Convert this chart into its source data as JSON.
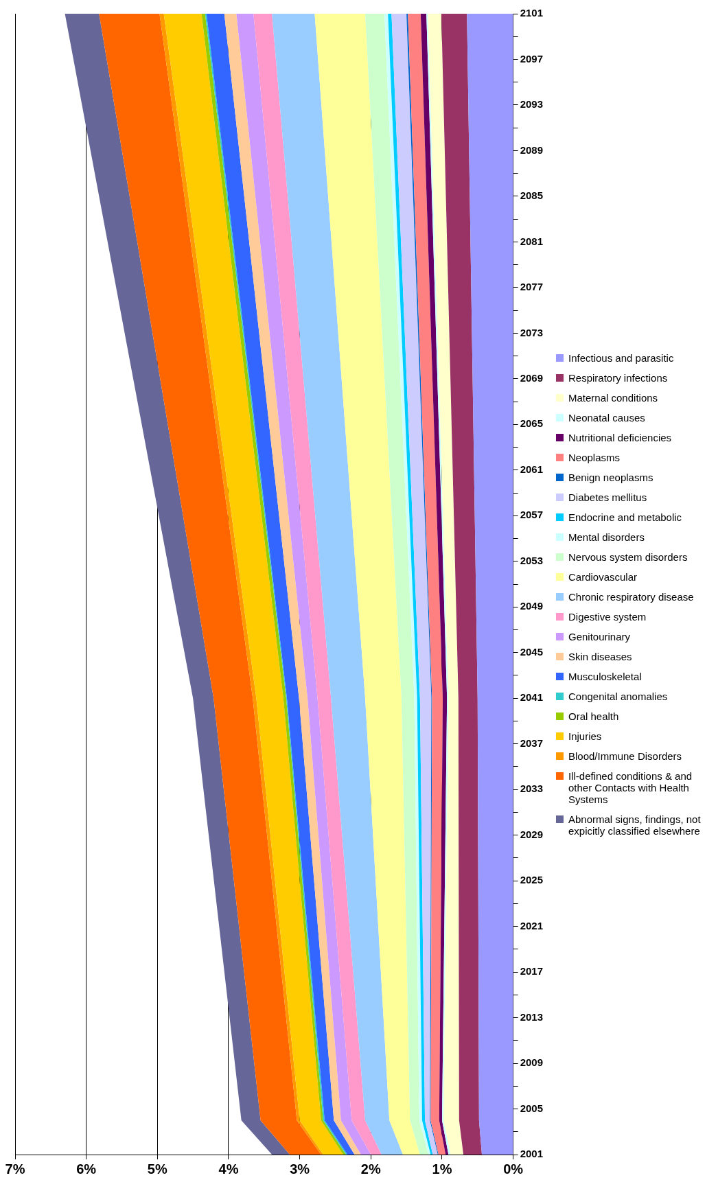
{
  "chart_data": {
    "type": "area",
    "stacked": true,
    "orientation": "horizontal",
    "x": [
      2001,
      2004,
      2041,
      2101
    ],
    "series": [
      {
        "name": "Infectious and parasitic",
        "color": "#9999ff",
        "values": [
          0.44,
          0.48,
          0.5,
          0.65
        ]
      },
      {
        "name": "Respiratory infections",
        "color": "#993366",
        "values": [
          0.26,
          0.28,
          0.27,
          0.36
        ]
      },
      {
        "name": "Maternal conditions",
        "color": "#ffffcc",
        "values": [
          0.18,
          0.22,
          0.14,
          0.19
        ]
      },
      {
        "name": "Neonatal causes",
        "color": "#ccffff",
        "values": [
          0.03,
          0.02,
          0.02,
          0.02
        ]
      },
      {
        "name": "Nutritional deficiencies",
        "color": "#660066",
        "values": [
          0.04,
          0.04,
          0.06,
          0.08
        ]
      },
      {
        "name": "Neoplasms",
        "color": "#ff8080",
        "values": [
          0.1,
          0.12,
          0.15,
          0.18
        ]
      },
      {
        "name": "Benign neoplasms",
        "color": "#0066cc",
        "values": [
          0.01,
          0.01,
          0.01,
          0.02
        ]
      },
      {
        "name": "Diabetes mellitus",
        "color": "#ccccff",
        "values": [
          0.07,
          0.07,
          0.16,
          0.21
        ]
      },
      {
        "name": "Endocrine and metabolic",
        "color": "#00ccff",
        "values": [
          0.03,
          0.04,
          0.04,
          0.05
        ]
      },
      {
        "name": "Mental disorders",
        "color": "#ccffff",
        "values": [
          0.03,
          0.04,
          0.04,
          0.05
        ]
      },
      {
        "name": "Nervous system disorders",
        "color": "#ccffcc",
        "values": [
          0.12,
          0.13,
          0.18,
          0.27
        ]
      },
      {
        "name": "Cardiovascular",
        "color": "#ffff99",
        "values": [
          0.24,
          0.29,
          0.51,
          0.71
        ]
      },
      {
        "name": "Chronic respiratory disease",
        "color": "#99ccff",
        "values": [
          0.3,
          0.34,
          0.48,
          0.6
        ]
      },
      {
        "name": "Digestive system",
        "color": "#ff99cc",
        "values": [
          0.15,
          0.19,
          0.19,
          0.26
        ]
      },
      {
        "name": "Genitourinary",
        "color": "#cc99ff",
        "values": [
          0.14,
          0.15,
          0.14,
          0.24
        ]
      },
      {
        "name": "Skin diseases",
        "color": "#ffcc99",
        "values": [
          0.09,
          0.1,
          0.12,
          0.17
        ]
      },
      {
        "name": "Musculoskeletal",
        "color": "#3366ff",
        "values": [
          0.1,
          0.13,
          0.17,
          0.25
        ]
      },
      {
        "name": "Congenital anomalies",
        "color": "#33cccc",
        "values": [
          0.02,
          0.02,
          0.01,
          0.02
        ]
      },
      {
        "name": "Oral health",
        "color": "#99cc00",
        "values": [
          0.04,
          0.03,
          0.04,
          0.05
        ]
      },
      {
        "name": "Injuries",
        "color": "#ffcc00",
        "values": [
          0.28,
          0.3,
          0.38,
          0.53
        ]
      },
      {
        "name": "Blood/Immune Disorders",
        "color": "#ff9900",
        "values": [
          0.03,
          0.04,
          0.05,
          0.06
        ]
      },
      {
        "name": "Ill-defined conditions & and other Contacts with Health Systems",
        "color": "#ff6600",
        "values": [
          0.44,
          0.51,
          0.55,
          0.85
        ]
      },
      {
        "name": "Abnormal signs, findings, not expicitly classified elsewhere",
        "color": "#666699",
        "values": [
          0.25,
          0.27,
          0.29,
          0.48
        ]
      }
    ],
    "ylim": [
      2001,
      2101
    ],
    "yticks": [
      2001,
      {
        "value": 2003,
        "label": null
      },
      2005,
      {
        "value": 2007,
        "label": null
      },
      2009,
      {
        "value": 2011,
        "label": null
      },
      2013,
      {
        "value": 2015,
        "label": null
      },
      2017,
      {
        "value": 2019,
        "label": null
      },
      2021,
      {
        "value": 2023,
        "label": null
      },
      2025,
      {
        "value": 2027,
        "label": null
      },
      2029,
      {
        "value": 2031,
        "label": null
      },
      2033,
      {
        "value": 2035,
        "label": null
      },
      2037,
      {
        "value": 2039,
        "label": null
      },
      2041,
      {
        "value": 2043,
        "label": null
      },
      2045,
      {
        "value": 2047,
        "label": null
      },
      2049,
      {
        "value": 2051,
        "label": null
      },
      2053,
      {
        "value": 2055,
        "label": null
      },
      2057,
      {
        "value": 2059,
        "label": null
      },
      2061,
      {
        "value": 2063,
        "label": null
      },
      2065,
      {
        "value": 2067,
        "label": null
      },
      2069,
      {
        "value": 2071,
        "label": null
      },
      2073,
      {
        "value": 2075,
        "label": null
      },
      2077,
      {
        "value": 2079,
        "label": null
      },
      2081,
      {
        "value": 2083,
        "label": null
      },
      2085,
      {
        "value": 2087,
        "label": null
      },
      2089,
      {
        "value": 2091,
        "label": null
      },
      2093,
      {
        "value": 2095,
        "label": null
      },
      2097,
      {
        "value": 2099,
        "label": null
      },
      2101
    ],
    "xlim": [
      7,
      0
    ],
    "xticks": [
      {
        "value": 0,
        "label": "0%"
      },
      {
        "value": 1,
        "label": "1%"
      },
      {
        "value": 2,
        "label": "2%"
      },
      {
        "value": 3,
        "label": "3%"
      },
      {
        "value": 4,
        "label": "4%"
      },
      {
        "value": 5,
        "label": "5%"
      },
      {
        "value": 6,
        "label": "6%"
      },
      {
        "value": 7,
        "label": "7%"
      }
    ],
    "grid": "x",
    "legend": "right"
  }
}
